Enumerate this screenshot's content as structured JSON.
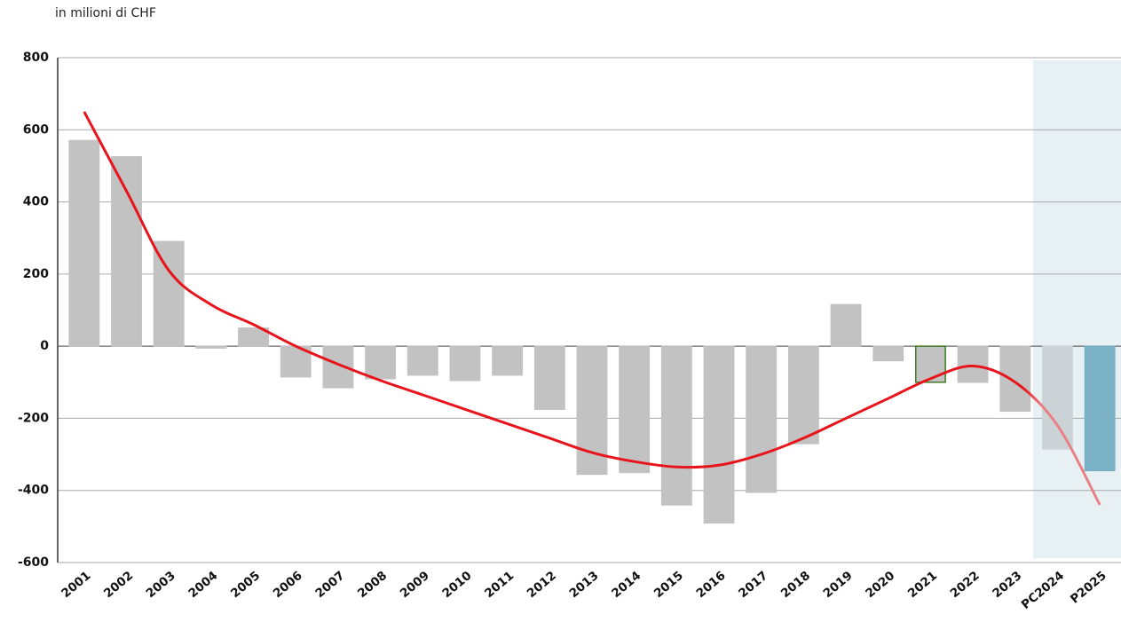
{
  "chart_data": {
    "type": "bar",
    "subtitle": "in milioni di CHF",
    "categories": [
      "2001",
      "2002",
      "2003",
      "2004",
      "2005",
      "2006",
      "2007",
      "2008",
      "2009",
      "2010",
      "2011",
      "2012",
      "2013",
      "2014",
      "2015",
      "2016",
      "2017",
      "2018",
      "2019",
      "2020",
      "2021",
      "2022",
      "2023",
      "PC2024",
      "P2025"
    ],
    "values": [
      570,
      525,
      290,
      -5,
      50,
      -85,
      -115,
      -90,
      -80,
      -95,
      -80,
      -175,
      -355,
      -350,
      -440,
      -490,
      -405,
      -270,
      115,
      -40,
      -100,
      -100,
      -180,
      -285,
      -345
    ],
    "colors": [
      "#c2c2c2",
      "#c2c2c2",
      "#c2c2c2",
      "#c2c2c2",
      "#c2c2c2",
      "#c2c2c2",
      "#c2c2c2",
      "#c2c2c2",
      "#c2c2c2",
      "#c2c2c2",
      "#c2c2c2",
      "#c2c2c2",
      "#c2c2c2",
      "#c2c2c2",
      "#c2c2c2",
      "#c2c2c2",
      "#c2c2c2",
      "#c2c2c2",
      "#c2c2c2",
      "#c2c2c2",
      "#c2c2c2",
      "#c2c2c2",
      "#c2c2c2",
      "#ccd3d6",
      "#7ab1c4"
    ],
    "edgecolors": [
      "#c2c2c2",
      "#c2c2c2",
      "#c2c2c2",
      "#c2c2c2",
      "#c2c2c2",
      "#c2c2c2",
      "#c2c2c2",
      "#c2c2c2",
      "#c2c2c2",
      "#c2c2c2",
      "#c2c2c2",
      "#c2c2c2",
      "#c2c2c2",
      "#c2c2c2",
      "#c2c2c2",
      "#c2c2c2",
      "#c2c2c2",
      "#c2c2c2",
      "#c2c2c2",
      "#c2c2c2",
      "#3f7a25",
      "#c2c2c2",
      "#c2c2c2",
      "#ccd3d6",
      "#7ab1c4"
    ],
    "trend": {
      "color": "#e8141b",
      "forecast_color": "#ea7f86",
      "values": [
        650,
        430,
        210,
        115,
        60,
        0,
        -50,
        -95,
        -135,
        -175,
        -215,
        -255,
        -295,
        -320,
        -335,
        -330,
        -300,
        -255,
        -200,
        -145,
        -90,
        -55,
        -100,
        -220,
        -440
      ]
    },
    "ylim": [
      -600,
      800
    ],
    "yticks": [
      -600,
      -400,
      -200,
      0,
      200,
      400,
      600,
      800
    ],
    "grid": true
  }
}
